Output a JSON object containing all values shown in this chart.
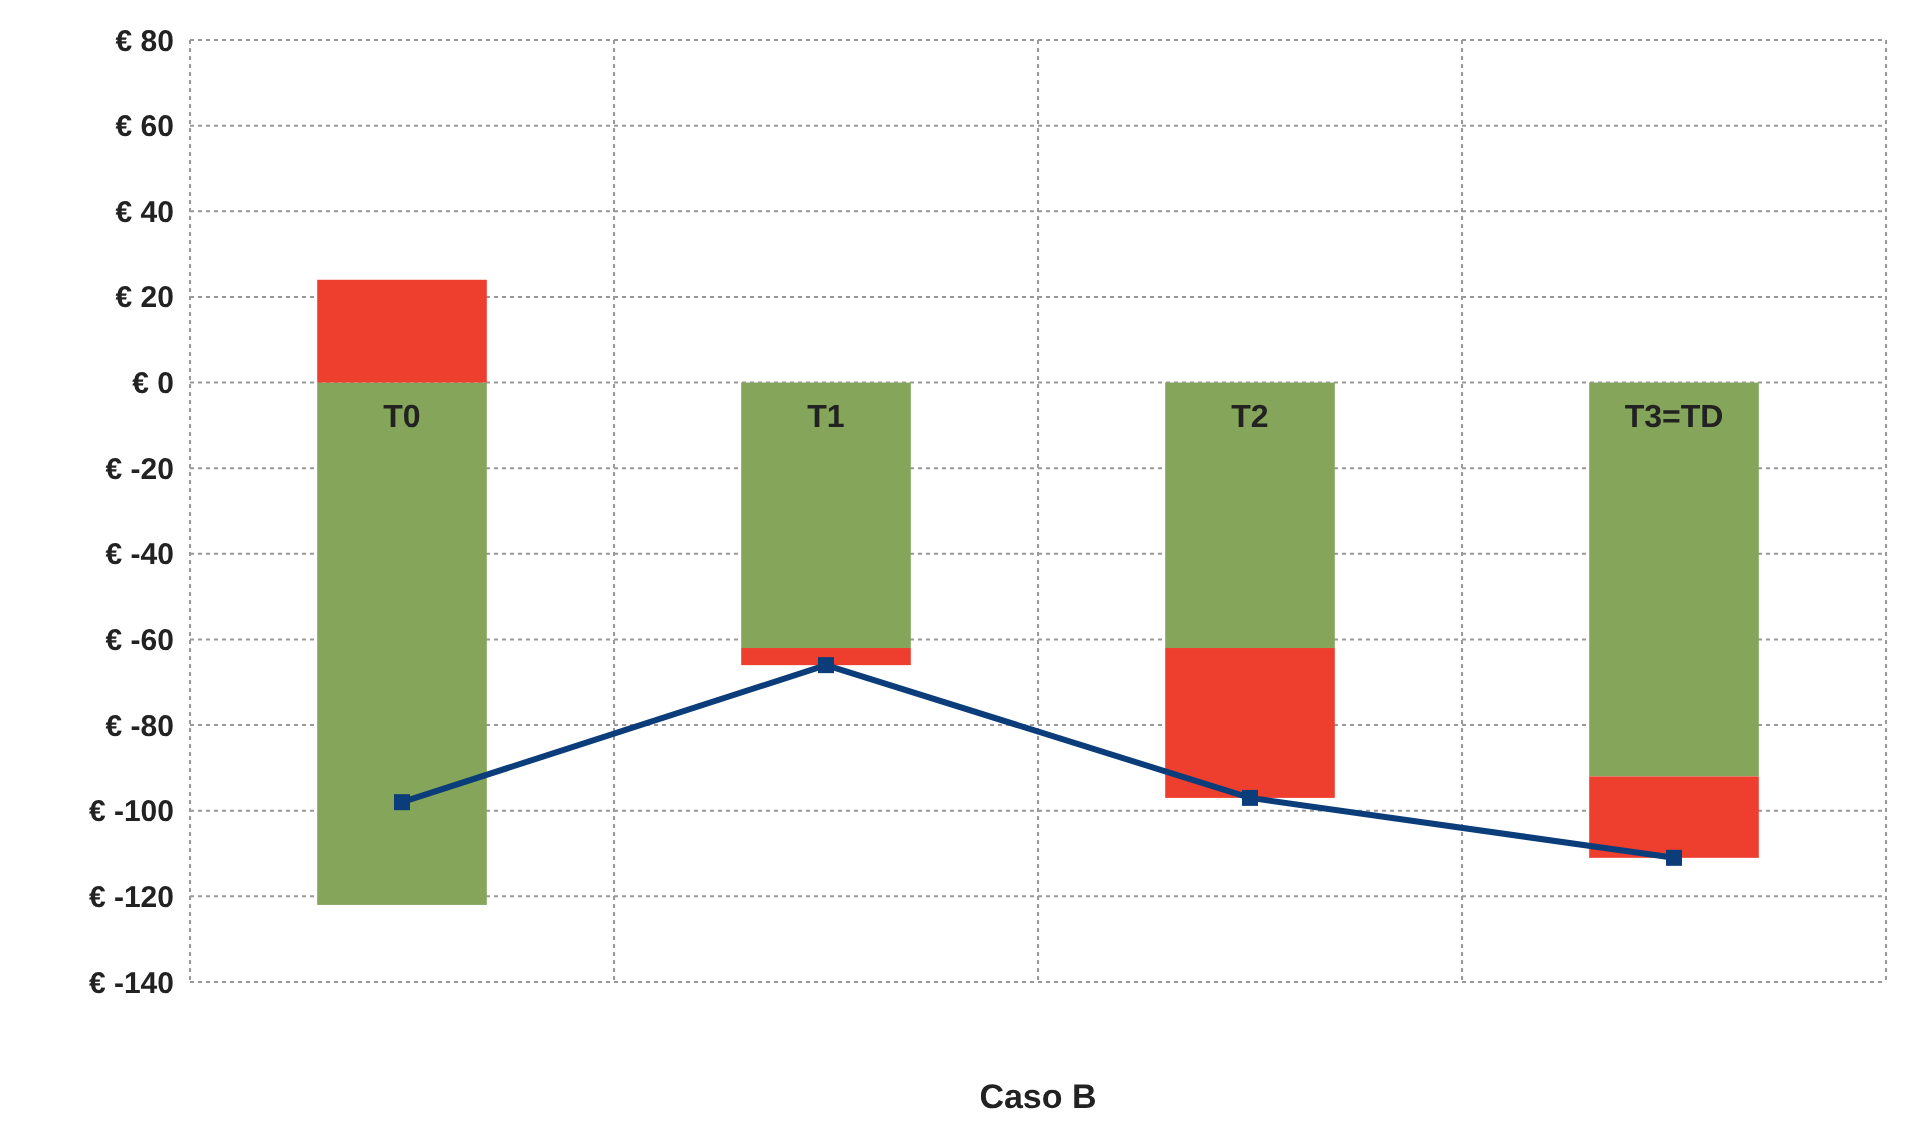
{
  "chart_data": {
    "type": "bar",
    "stacked": true,
    "xlabel": "Caso B",
    "categories": [
      "T0",
      "T1",
      "T2",
      "T3=TD"
    ],
    "series": [
      {
        "color": "#84a55a",
        "values": [
          -122,
          -62,
          -62,
          -92
        ]
      },
      {
        "color": "#ee3e2e",
        "values": [
          24,
          -4,
          -35,
          -19
        ]
      },
      {
        "type": "line",
        "color": "#0b3d7a",
        "values": [
          -98,
          -66,
          -97,
          -111
        ],
        "marker": "square"
      }
    ],
    "ylim": [
      -140,
      80
    ],
    "yticks": [
      {
        "value": -140,
        "label": "€ -140"
      },
      {
        "value": -120,
        "label": "€ -120"
      },
      {
        "value": -100,
        "label": "€ -100"
      },
      {
        "value": -80,
        "label": "€ -80"
      },
      {
        "value": -60,
        "label": "€ -60"
      },
      {
        "value": -40,
        "label": "€ -40"
      },
      {
        "value": -20,
        "label": "€ -20"
      },
      {
        "value": 0,
        "label": "€ 0"
      },
      {
        "value": 20,
        "label": "€ 20"
      },
      {
        "value": 40,
        "label": "€ 40"
      },
      {
        "value": 60,
        "label": "€ 60"
      },
      {
        "value": 80,
        "label": "€ 80"
      }
    ],
    "grid": true
  }
}
